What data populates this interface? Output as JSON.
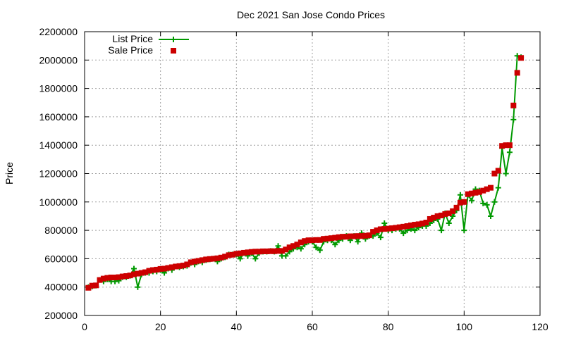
{
  "chart_data": {
    "type": "line",
    "title": "Dec 2021 San Jose Condo Prices",
    "xlabel": "",
    "ylabel": "Price",
    "xlim": [
      0,
      120
    ],
    "ylim": [
      200000,
      2200000
    ],
    "xticks": [
      0,
      20,
      40,
      60,
      80,
      100,
      120
    ],
    "yticks": [
      200000,
      400000,
      600000,
      800000,
      1000000,
      1200000,
      1400000,
      1600000,
      1800000,
      2000000,
      2200000
    ],
    "xtick_labels": [
      "0",
      "20",
      "40",
      "60",
      "80",
      "100",
      "120"
    ],
    "ytick_labels": [
      "200000",
      "400000",
      "600000",
      "800000",
      "1000000",
      "1200000",
      "1400000",
      "1600000",
      "1800000",
      "2000000",
      "2200000"
    ],
    "grid": true,
    "legend_position": "top-left",
    "x": [
      1,
      2,
      3,
      4,
      5,
      6,
      7,
      8,
      9,
      10,
      11,
      12,
      13,
      14,
      15,
      16,
      17,
      18,
      19,
      20,
      21,
      22,
      23,
      24,
      25,
      26,
      27,
      28,
      29,
      30,
      31,
      32,
      33,
      34,
      35,
      36,
      37,
      38,
      39,
      40,
      41,
      42,
      43,
      44,
      45,
      46,
      47,
      48,
      49,
      50,
      51,
      52,
      53,
      54,
      55,
      56,
      57,
      58,
      59,
      60,
      61,
      62,
      63,
      64,
      65,
      66,
      67,
      68,
      69,
      70,
      71,
      72,
      73,
      74,
      75,
      76,
      77,
      78,
      79,
      80,
      81,
      82,
      83,
      84,
      85,
      86,
      87,
      88,
      89,
      90,
      91,
      92,
      93,
      94,
      95,
      96,
      97,
      98,
      99,
      100,
      101,
      102,
      103,
      104,
      105,
      106,
      107,
      108,
      109,
      110,
      111,
      112,
      113,
      114,
      115
    ],
    "series": [
      {
        "name": "List Price",
        "style": "line-plus",
        "color": "#009900",
        "values": [
          400000,
          405000,
          410000,
          450000,
          440000,
          455000,
          440000,
          440000,
          445000,
          470000,
          470000,
          480000,
          530000,
          400000,
          490000,
          500000,
          500000,
          510000,
          510000,
          520000,
          500000,
          530000,
          520000,
          545000,
          540000,
          545000,
          550000,
          570000,
          560000,
          580000,
          575000,
          590000,
          595000,
          600000,
          580000,
          600000,
          610000,
          630000,
          630000,
          630000,
          600000,
          640000,
          620000,
          640000,
          600000,
          640000,
          650000,
          650000,
          655000,
          650000,
          690000,
          620000,
          620000,
          650000,
          670000,
          680000,
          670000,
          700000,
          720000,
          720000,
          680000,
          660000,
          720000,
          730000,
          730000,
          700000,
          730000,
          740000,
          760000,
          730000,
          760000,
          720000,
          780000,
          740000,
          760000,
          760000,
          780000,
          750000,
          850000,
          800000,
          800000,
          810000,
          810000,
          780000,
          800000,
          810000,
          800000,
          820000,
          830000,
          830000,
          850000,
          870000,
          880000,
          800000,
          920000,
          850000,
          900000,
          940000,
          1050000,
          800000,
          1050000,
          1010000,
          1090000,
          1080000,
          990000,
          980000,
          900000,
          1000000,
          1100000,
          1380000,
          1200000,
          1350000,
          1580000,
          2030000,
          2020000
        ]
      },
      {
        "name": "Sale Price",
        "style": "points-square",
        "color": "#cc0000",
        "values": [
          395000,
          410000,
          412000,
          450000,
          460000,
          465000,
          468000,
          468000,
          470000,
          475000,
          478000,
          482000,
          490000,
          495000,
          500000,
          505000,
          515000,
          520000,
          523000,
          528000,
          530000,
          535000,
          540000,
          545000,
          548000,
          552000,
          560000,
          575000,
          580000,
          585000,
          590000,
          595000,
          598000,
          600000,
          603000,
          608000,
          615000,
          625000,
          628000,
          635000,
          638000,
          642000,
          645000,
          648000,
          650000,
          650000,
          652000,
          652000,
          653000,
          653000,
          655000,
          655000,
          665000,
          680000,
          690000,
          700000,
          715000,
          725000,
          730000,
          730000,
          732000,
          732000,
          740000,
          742000,
          745000,
          748000,
          752000,
          755000,
          755000,
          758000,
          758000,
          760000,
          760000,
          762000,
          765000,
          790000,
          800000,
          808000,
          810000,
          812000,
          815000,
          818000,
          822000,
          826000,
          830000,
          835000,
          840000,
          843000,
          848000,
          855000,
          880000,
          890000,
          900000,
          905000,
          915000,
          920000,
          935000,
          960000,
          995000,
          1000000,
          1055000,
          1060000,
          1065000,
          1070000,
          1080000,
          1090000,
          1100000,
          1200000,
          1220000,
          1395000,
          1400000,
          1400000,
          1680000,
          1910000,
          2015000
        ]
      }
    ]
  }
}
